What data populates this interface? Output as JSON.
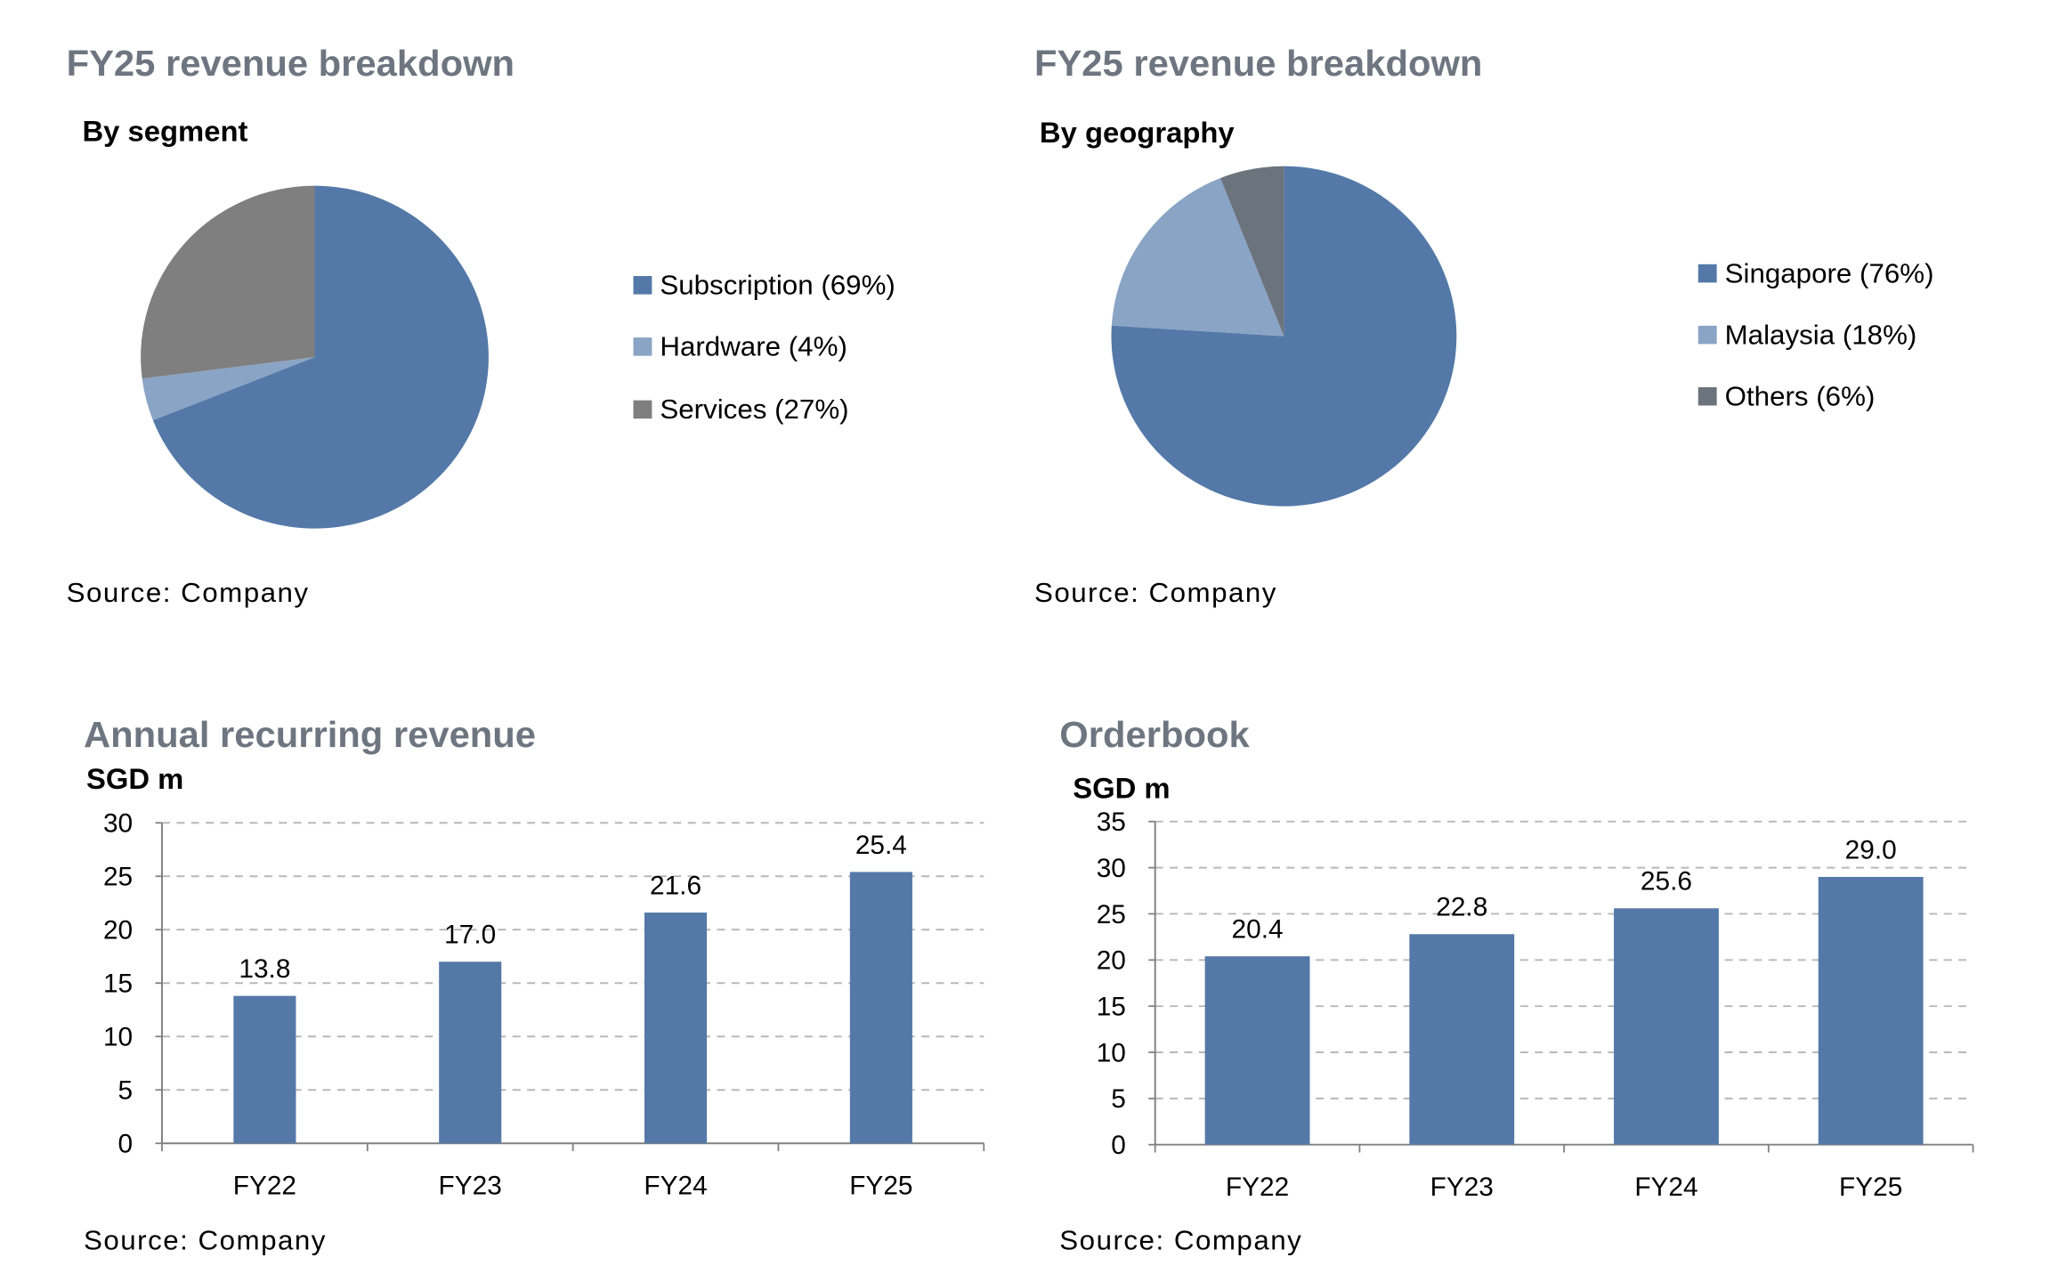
{
  "chart_data": [
    {
      "id": "segment",
      "type": "pie",
      "title": "FY25 revenue breakdown",
      "subtitle": "By segment",
      "source": "Source: Company",
      "slices": [
        {
          "label": "Subscription (69%)",
          "value": 69,
          "color": "#5479a8"
        },
        {
          "label": "Hardware (4%)",
          "value": 4,
          "color": "#8aa4c5"
        },
        {
          "label": "Services (27%)",
          "value": 27,
          "color": "#7f7f7f"
        }
      ],
      "legend_position": "right"
    },
    {
      "id": "geography",
      "type": "pie",
      "title": "FY25 revenue breakdown",
      "subtitle": "By geography",
      "source": "Source: Company",
      "slices": [
        {
          "label": "Singapore (76%)",
          "value": 76,
          "color": "#5479a8"
        },
        {
          "label": "Malaysia (18%)",
          "value": 18,
          "color": "#8aa4c5"
        },
        {
          "label": "Others (6%)",
          "value": 6,
          "color": "#6b737c"
        }
      ],
      "legend_position": "right"
    },
    {
      "id": "arr",
      "type": "bar",
      "title": "Annual recurring revenue",
      "ylabel": "SGD m",
      "source": "Source: Company",
      "categories": [
        "FY22",
        "FY23",
        "FY24",
        "FY25"
      ],
      "values": [
        13.8,
        17.0,
        21.6,
        25.4
      ],
      "labels": [
        "13.8",
        "17.0",
        "21.6",
        "25.4"
      ],
      "ylim": [
        0,
        30
      ],
      "yticks": [
        0,
        5,
        10,
        15,
        20,
        25,
        30
      ],
      "grid": true,
      "color": "#5479a8"
    },
    {
      "id": "orderbook",
      "type": "bar",
      "title": "Orderbook",
      "ylabel": "SGD m",
      "source": "Source: Company",
      "categories": [
        "FY22",
        "FY23",
        "FY24",
        "FY25"
      ],
      "values": [
        20.4,
        22.8,
        25.6,
        29.0
      ],
      "labels": [
        "20.4",
        "22.8",
        "25.6",
        "29.0"
      ],
      "ylim": [
        0,
        35
      ],
      "yticks": [
        0,
        5,
        10,
        15,
        20,
        25,
        30,
        35
      ],
      "grid": true,
      "color": "#5479a8"
    }
  ]
}
